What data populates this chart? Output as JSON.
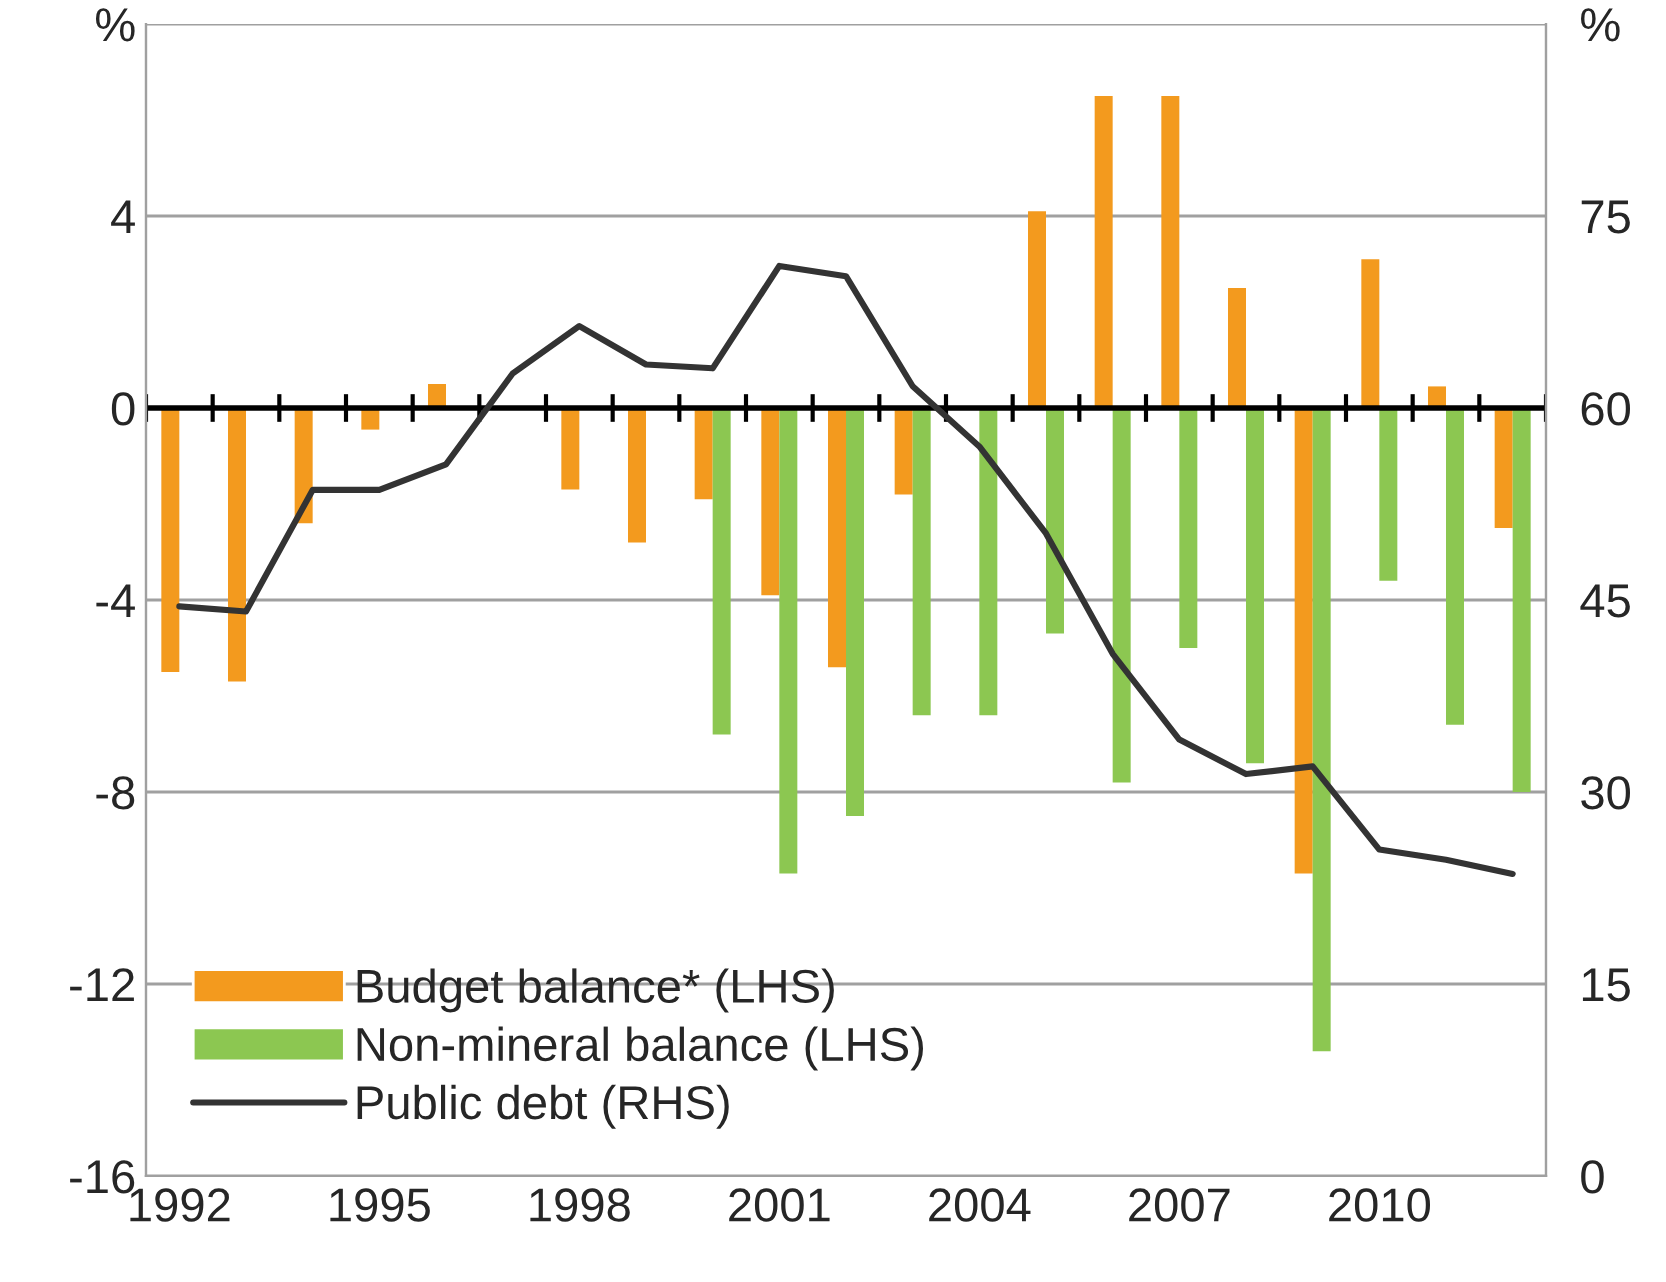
{
  "chart_data": {
    "type": "bar",
    "categories": [
      "1992",
      null,
      null,
      "1995",
      null,
      null,
      "1998",
      null,
      null,
      "2001",
      null,
      null,
      "2004",
      null,
      null,
      "2007",
      null,
      null,
      "2010",
      null,
      null
    ],
    "series": [
      {
        "name": "Budget balance* (LHS)",
        "color": "#f39a1e",
        "values": [
          -5.5,
          -5.7,
          -2.4,
          -0.45,
          0.5,
          null,
          -1.7,
          -2.8,
          -1.9,
          -3.9,
          -5.4,
          -1.8,
          null,
          4.1,
          6.5,
          6.5,
          2.5,
          -9.7,
          3.1,
          0.45,
          -2.5
        ]
      },
      {
        "name": "Non-mineral balance (LHS)",
        "color": "#8cc751",
        "values": [
          null,
          null,
          null,
          null,
          null,
          null,
          null,
          null,
          -6.8,
          -9.7,
          -8.5,
          -6.4,
          -6.4,
          -4.7,
          -7.8,
          -5.0,
          -7.4,
          -13.4,
          -3.6,
          -6.6,
          -8.0
        ]
      },
      {
        "name": "Public debt (RHS)",
        "type": "line",
        "axis": "y2",
        "color": "#333333",
        "values": [
          44.5,
          44.1,
          53.6,
          53.6,
          55.6,
          62.7,
          66.4,
          63.4,
          63.1,
          71.1,
          70.3,
          61.7,
          57.0,
          50.2,
          40.8,
          34.1,
          31.4,
          32.0,
          25.5,
          24.7,
          23.6
        ]
      }
    ],
    "ylim": [
      -16,
      8
    ],
    "yticks": [
      -16,
      -12,
      -8,
      -4,
      0,
      4,
      {
        "value": 8,
        "label": "%"
      }
    ],
    "y2lim": [
      0,
      90
    ],
    "y2ticks": [
      0,
      15,
      30,
      45,
      60,
      75,
      {
        "value": 90,
        "label": "%"
      }
    ],
    "grid": "y",
    "ref_lines": [
      {
        "axis": "y",
        "value": 0,
        "color": "#000000"
      }
    ],
    "legend": "bottom left",
    "marker": "none",
    "line_style": "solid"
  }
}
